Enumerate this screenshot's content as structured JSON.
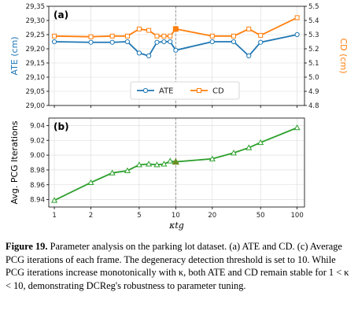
{
  "chart_data": [
    {
      "type": "line",
      "panel_label": "(a)",
      "x_scale": "log",
      "x": [
        1,
        2,
        3,
        4,
        5,
        6,
        7,
        8,
        9,
        10,
        20,
        30,
        40,
        50,
        100
      ],
      "xlim": [
        0.9,
        115
      ],
      "grid": true,
      "ylabel_left": "ATE (cm)",
      "ylabel_right": "CD (cm)",
      "ylim_left": [
        29.0,
        29.35
      ],
      "ylim_right": [
        4.8,
        5.5
      ],
      "yticks_left": [
        "29,00",
        "29,05",
        "29,10",
        "29,15",
        "29,20",
        "29,25",
        "29,30",
        "29,35"
      ],
      "yticks_right": [
        "4.8",
        "4.9",
        "5.0",
        "5.1",
        "5.2",
        "5.3",
        "5.4",
        "5.5"
      ],
      "series": [
        {
          "name": "ATE",
          "axis": "left",
          "color": "#1f77b4",
          "marker": "circle",
          "values": [
            29.225,
            29.223,
            29.223,
            29.225,
            29.185,
            29.175,
            29.223,
            29.225,
            29.225,
            29.195,
            29.225,
            29.225,
            29.175,
            29.223,
            29.25
          ]
        },
        {
          "name": "CD",
          "axis": "right",
          "color": "#ff7f0e",
          "marker": "square",
          "values": [
            5.29,
            5.285,
            5.29,
            5.29,
            5.34,
            5.33,
            5.29,
            5.29,
            5.29,
            5.34,
            5.29,
            5.29,
            5.34,
            5.295,
            5.42
          ]
        }
      ],
      "highlight": {
        "x": 10,
        "series": "CD",
        "value": 5.34
      },
      "vline": 10,
      "legend": {
        "entries": [
          "ATE",
          "CD"
        ],
        "placement": "bottom-center"
      }
    },
    {
      "type": "line",
      "panel_label": "(b)",
      "x_scale": "log",
      "x": [
        1,
        2,
        3,
        4,
        5,
        6,
        7,
        8,
        9,
        10,
        20,
        30,
        40,
        50,
        100
      ],
      "xlim": [
        0.9,
        115
      ],
      "grid": true,
      "xlabel": "κtg",
      "xticks": [
        "1",
        "2",
        "5",
        "10",
        "20",
        "50",
        "100"
      ],
      "ylabel": "Avg. PCG Iterations",
      "ylim": [
        8.93,
        9.05
      ],
      "yticks": [
        "8.94",
        "8.96",
        "8.98",
        "9.00",
        "9.02",
        "9.04"
      ],
      "series": [
        {
          "name": "PCG",
          "color": "#2ca02c",
          "marker": "triangle",
          "values": [
            8.939,
            8.963,
            8.976,
            8.979,
            8.987,
            8.988,
            8.987,
            8.988,
            8.992,
            8.991,
            8.995,
            9.003,
            9.01,
            9.017,
            9.037
          ]
        }
      ],
      "highlight": {
        "x": 10,
        "value": 8.991
      },
      "vline": 10
    }
  ],
  "caption": {
    "label": "Figure 19.",
    "text": " Parameter analysis on the parking lot dataset. (a) ATE and CD. (c) Average PCG iterations of each frame. The degeneracy detection threshold is set to 10. While PCG iterations increase monotonically with κ, both ATE and CD remain stable for 1 < κ < 10, demonstrating DCReg's robustness to parameter tuning."
  }
}
